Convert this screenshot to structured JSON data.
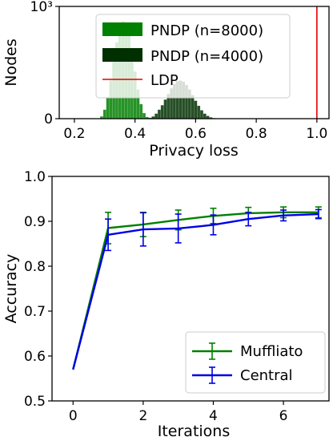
{
  "chart_data": [
    {
      "type": "histogram",
      "xlabel": "Privacy loss",
      "ylabel": "Nodes",
      "xlim": [
        0.15,
        1.04
      ],
      "ylim": [
        0,
        1000
      ],
      "xticks": [
        "0.2",
        "0.4",
        "0.6",
        "0.8",
        "1.0"
      ],
      "xtick_values": [
        0.2,
        0.4,
        0.6,
        0.8,
        1.0
      ],
      "yticks": [
        "0",
        "10³"
      ],
      "ytick_values": [
        0,
        1000
      ],
      "bin_width": 0.01,
      "series": [
        {
          "name": "PNDP (n=8000)",
          "color": "#008000",
          "bins_x": [
            0.29,
            0.3,
            0.31,
            0.32,
            0.33,
            0.34,
            0.35,
            0.36,
            0.37,
            0.38,
            0.39,
            0.4,
            0.41,
            0.42,
            0.43,
            0.44
          ],
          "counts": [
            20,
            80,
            190,
            340,
            520,
            680,
            810,
            870,
            860,
            760,
            600,
            420,
            260,
            130,
            50,
            15
          ]
        },
        {
          "name": "PNDP (n=4000)",
          "color": "#003000",
          "bins_x": [
            0.45,
            0.46,
            0.47,
            0.48,
            0.49,
            0.5,
            0.51,
            0.52,
            0.53,
            0.54,
            0.55,
            0.56,
            0.57,
            0.58,
            0.59,
            0.6,
            0.61,
            0.62,
            0.63,
            0.64,
            0.65,
            0.66
          ],
          "counts": [
            8,
            20,
            45,
            80,
            120,
            170,
            220,
            270,
            310,
            335,
            340,
            330,
            300,
            260,
            210,
            160,
            115,
            75,
            45,
            25,
            12,
            5
          ]
        },
        {
          "name": "LDP",
          "color": "#e00000",
          "type": "vline",
          "x": 1.0
        }
      ],
      "legend": "top-center",
      "grid": false
    },
    {
      "type": "line",
      "xlabel": "Iterations",
      "ylabel": "Accuracy",
      "xlim": [
        -0.6,
        7.3
      ],
      "ylim": [
        0.5,
        1.0
      ],
      "xticks": [
        "0",
        "2",
        "4",
        "6"
      ],
      "xtick_values": [
        0,
        2,
        4,
        6
      ],
      "yticks": [
        "0.5",
        "0.6",
        "0.7",
        "0.8",
        "0.9",
        "1.0"
      ],
      "ytick_values": [
        0.5,
        0.6,
        0.7,
        0.8,
        0.9,
        1.0
      ],
      "x": [
        0,
        1,
        2,
        3,
        4,
        5,
        6,
        7
      ],
      "series": [
        {
          "name": "Muffliato",
          "color": "#008000",
          "values": [
            0.57,
            0.885,
            0.893,
            0.903,
            0.912,
            0.918,
            0.92,
            0.92
          ],
          "errors": [
            0.0,
            0.035,
            0.027,
            0.022,
            0.017,
            0.013,
            0.012,
            0.012
          ]
        },
        {
          "name": "Central",
          "color": "#0000e6",
          "values": [
            0.57,
            0.87,
            0.882,
            0.884,
            0.892,
            0.905,
            0.913,
            0.916
          ],
          "errors": [
            0.0,
            0.035,
            0.037,
            0.032,
            0.022,
            0.015,
            0.012,
            0.01
          ]
        }
      ],
      "legend": "bottom-right",
      "grid": false
    }
  ]
}
